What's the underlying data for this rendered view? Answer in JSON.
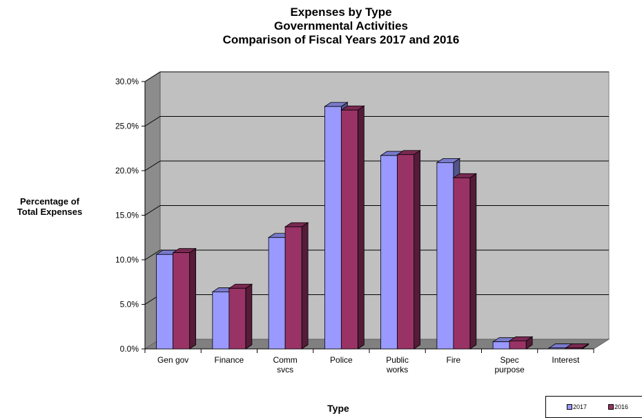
{
  "chart_data": {
    "type": "bar",
    "title": [
      "Expenses by Type",
      "Governmental Activities",
      "Comparison of Fiscal Years 2017 and 2016"
    ],
    "ylabel": [
      "Percentage of",
      "Total Expenses"
    ],
    "xlabel": "Type",
    "categories": [
      [
        "Gen gov"
      ],
      [
        "Finance"
      ],
      [
        "Comm",
        "svcs"
      ],
      [
        "Police"
      ],
      [
        "Public",
        "works"
      ],
      [
        "Fire"
      ],
      [
        "Spec",
        "purpose"
      ],
      [
        "Interest"
      ]
    ],
    "series": [
      {
        "name": "2017",
        "color": "#9999ff",
        "values": [
          10.6,
          6.4,
          12.5,
          27.2,
          21.7,
          20.9,
          0.8,
          0.1
        ]
      },
      {
        "name": "2016",
        "color": "#993366",
        "values": [
          10.8,
          6.8,
          13.7,
          26.8,
          21.8,
          19.2,
          0.9,
          0.1
        ]
      }
    ],
    "yticks": [
      "0.0%",
      "5.0%",
      "10.0%",
      "15.0%",
      "20.0%",
      "25.0%",
      "30.0%"
    ],
    "ylim": [
      0,
      30
    ],
    "grid": true,
    "legend_position": "bottom-right"
  }
}
